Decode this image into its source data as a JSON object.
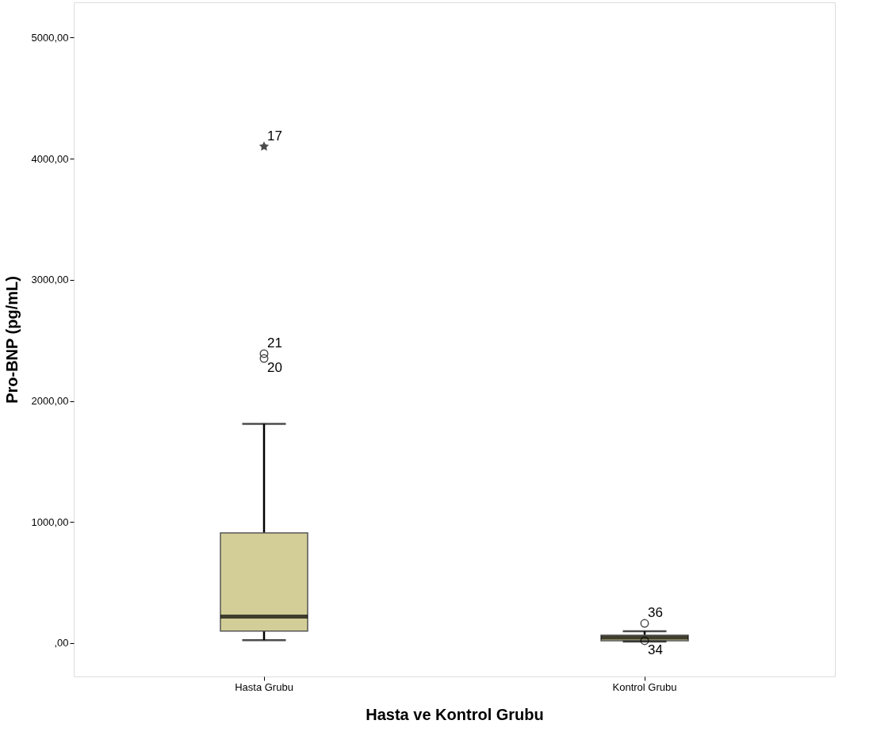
{
  "chart_data": {
    "type": "box",
    "xlabel": "Hasta ve Kontrol Grubu",
    "ylabel": "Pro-BNP (pg/mL)",
    "categories": [
      "Hasta Grubu",
      "Kontrol Grubu"
    ],
    "boxes": [
      {
        "low": 25,
        "q1": 100,
        "median": 220,
        "q3": 910,
        "high": 1810,
        "outliers": [
          2350,
          2390,
          4100
        ]
      },
      {
        "low": 13,
        "q1": 20,
        "median": 45,
        "q3": 65,
        "high": 98,
        "outliers": [
          163,
          20
        ]
      }
    ],
    "color": "#d3ce97",
    "ylim": [
      -275,
      5290
    ],
    "yticks": [
      {
        "value": 0,
        "label": ",00"
      },
      {
        "value": 1000,
        "label": "1000,00"
      },
      {
        "value": 2000,
        "label": "2000,00"
      },
      {
        "value": 3000,
        "label": "3000,00"
      },
      {
        "value": 4000,
        "label": "4000,00"
      },
      {
        "value": 5000,
        "label": "5000,00"
      }
    ],
    "annotations": [
      "20",
      "21",
      "17",
      "36",
      "34"
    ],
    "grid": false
  }
}
